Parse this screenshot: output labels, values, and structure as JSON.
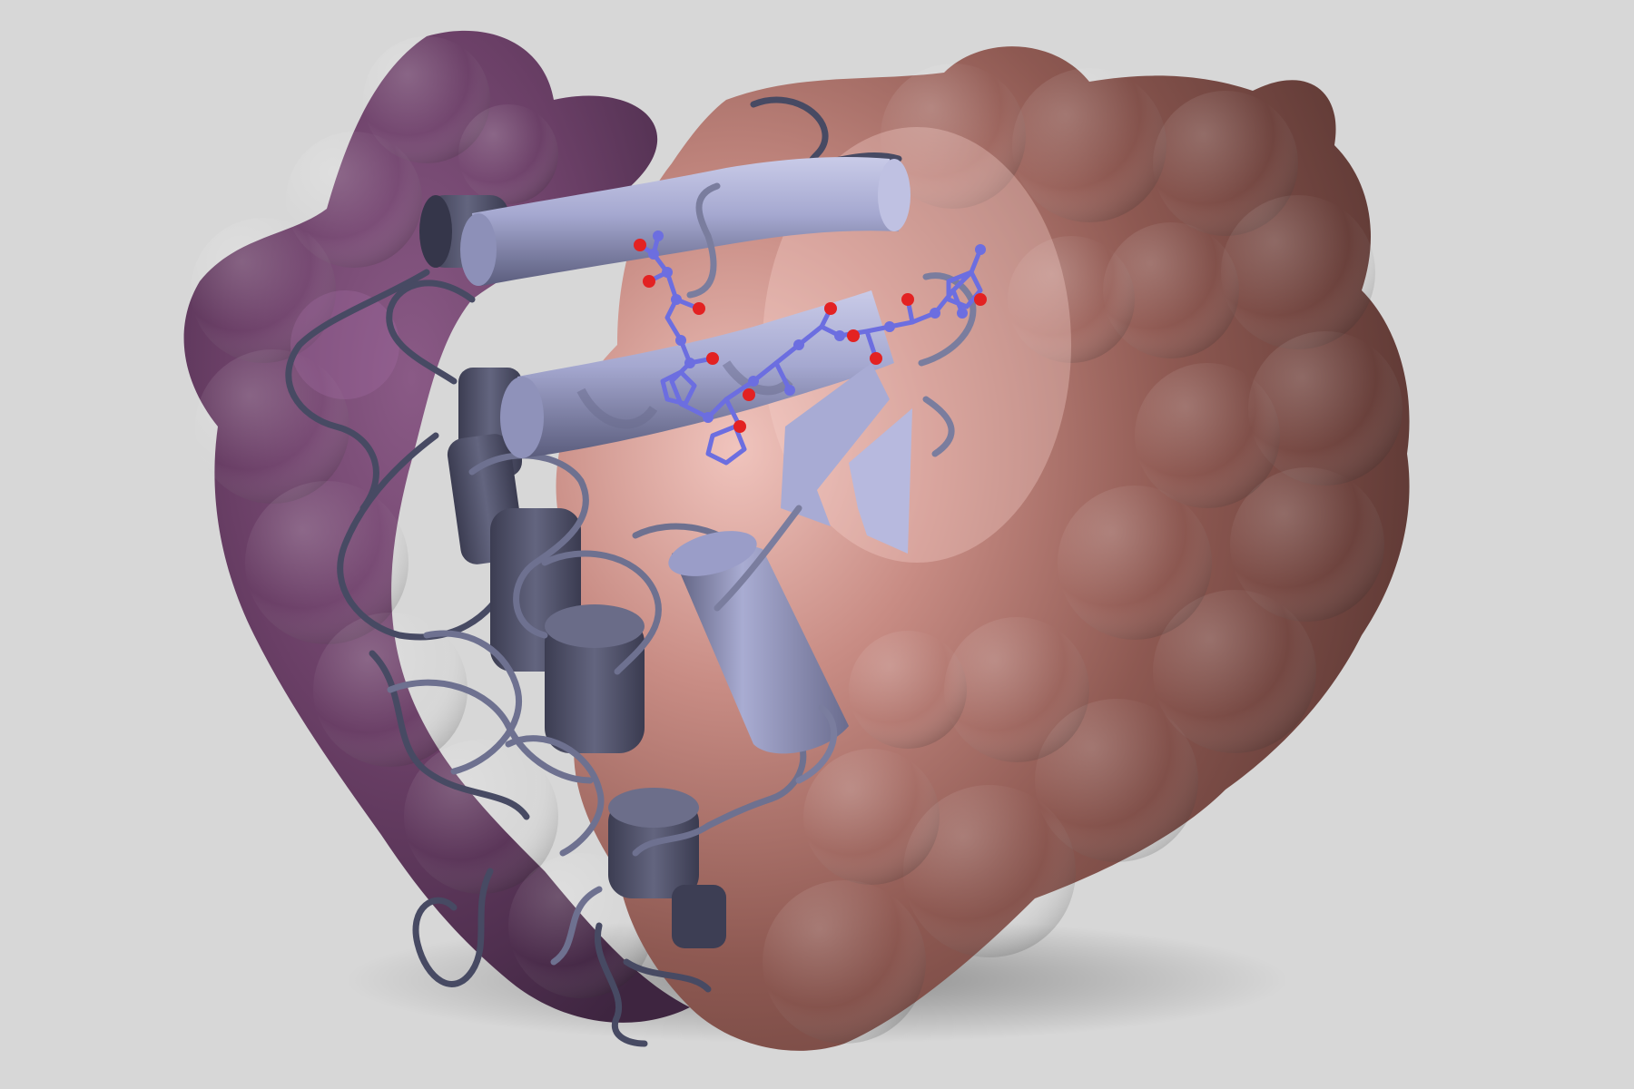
{
  "scene": {
    "background_color": "#d7d7d7",
    "colors": {
      "surface_left_purple": "#6a3f66",
      "surface_right_brown": "#8a5650",
      "surface_highlight_pink": "#e9b9b2",
      "cartoon_light": "#aeb1d6",
      "cartoon_dark": "#4a4c66",
      "ligand_carbon": "#6c6ee0",
      "ligand_oxygen": "#e32222"
    },
    "elements": [
      "molecular-surface",
      "protein-cartoon",
      "alpha-helix",
      "beta-strand",
      "coil-loop",
      "ligand-peptide"
    ]
  }
}
